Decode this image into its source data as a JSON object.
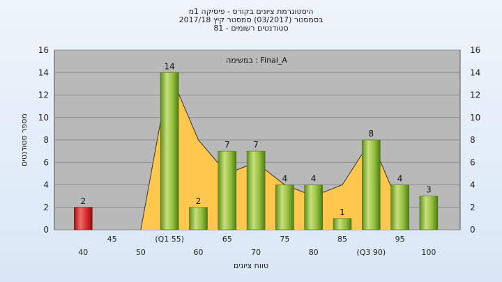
{
  "chart_data": {
    "type": "bar",
    "title_lines": [
      "היסטוגרמת ציונים בקורס - פיסיקה 1מ",
      "בסמסטר  (03/2017)  סמסטר קיץ  2017/18",
      "סטודנטים רשומים - 81"
    ],
    "annotation": "במשימה  : Final_A",
    "ylabel": "מספר סטודנטים",
    "xlabel": "טווח ציונים",
    "ylim": [
      0,
      16
    ],
    "yticks": [
      0,
      2,
      4,
      6,
      8,
      10,
      12,
      14,
      16
    ],
    "grid": true,
    "categories": [
      "40",
      "45",
      "50",
      "(Q1 55)",
      "60",
      "65",
      "70",
      "75",
      "80",
      "85",
      "(Q3 90)",
      "95",
      "100"
    ],
    "values": [
      2,
      0,
      0,
      14,
      2,
      7,
      7,
      4,
      4,
      1,
      8,
      4,
      3
    ],
    "value_labels": [
      "2",
      "",
      "",
      "14",
      "2",
      "7",
      "7",
      "4",
      "4",
      "1",
      "8",
      "4",
      "3"
    ],
    "bar_colors": [
      "#d42a2a",
      "#8fbc3a",
      "#8fbc3a",
      "#8fbc3a",
      "#8fbc3a",
      "#8fbc3a",
      "#8fbc3a",
      "#8fbc3a",
      "#8fbc3a",
      "#8fbc3a",
      "#8fbc3a",
      "#8fbc3a",
      "#8fbc3a"
    ],
    "area_series": {
      "x": [
        "50",
        "(Q1 55)",
        "60",
        "65",
        "70",
        "75",
        "80",
        "85",
        "(Q3 90)",
        "95"
      ],
      "values": [
        0,
        14,
        8,
        5,
        6,
        4,
        3,
        4,
        8,
        2
      ],
      "fill_color": "#ffc74d"
    },
    "gray_series": {
      "x": [
        "50",
        "(Q1 55)"
      ],
      "values": [
        0,
        14
      ],
      "fill_color": "#9a9a9a"
    },
    "plot_bg": "#b9b9b9",
    "line_color": "#333333"
  }
}
